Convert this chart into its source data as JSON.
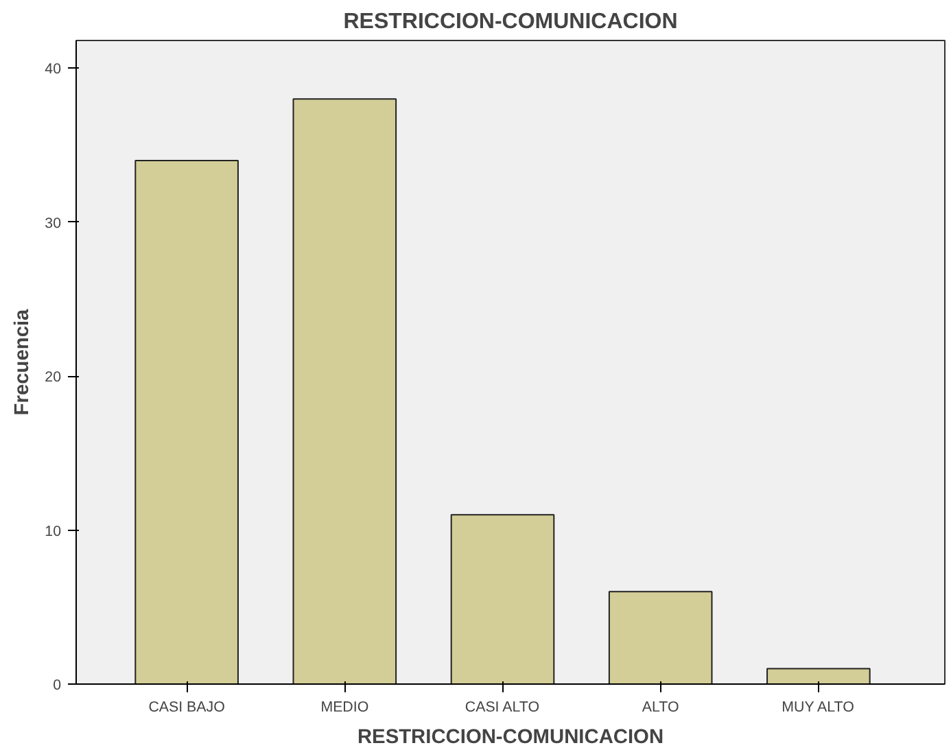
{
  "chart_data": {
    "type": "bar",
    "title": "RESTRICCION-COMUNICACION",
    "xlabel": "RESTRICCION-COMUNICACION",
    "ylabel": "Frecuencia",
    "categories": [
      "CASI BAJO",
      "MEDIO",
      "CASI ALTO",
      "ALTO",
      "MUY ALTO"
    ],
    "values": [
      34,
      38,
      11,
      6,
      1
    ],
    "color": "#d3ce97",
    "ylim": [
      0,
      41.8
    ],
    "yticks": [
      0,
      10,
      20,
      30,
      40
    ],
    "grid": false
  }
}
